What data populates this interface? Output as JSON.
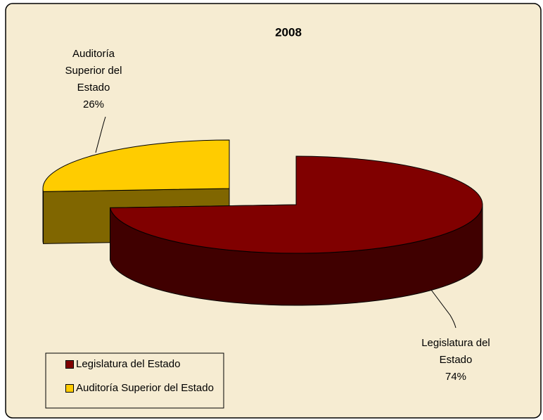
{
  "chart_data": {
    "type": "pie",
    "title": "2008",
    "categories": [
      "Legislatura del Estado",
      "Auditoría Superior del Estado"
    ],
    "values": [
      74,
      26
    ],
    "value_labels": [
      "74%",
      "26%"
    ],
    "colors": [
      "#800000",
      "#ffcc00"
    ],
    "legend": "lower left"
  }
}
